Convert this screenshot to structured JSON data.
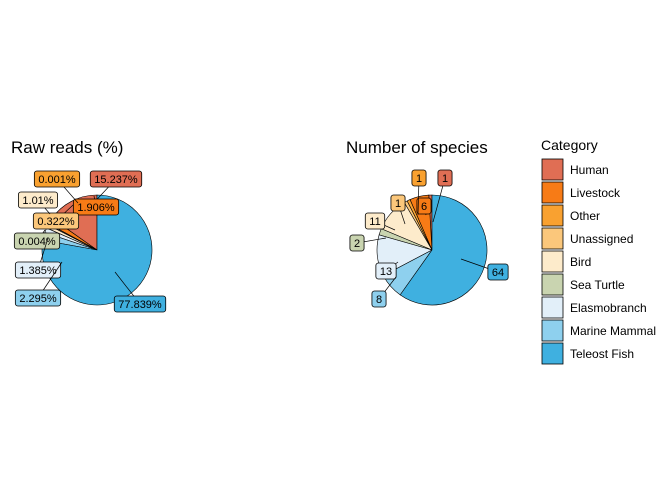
{
  "chart_data": [
    {
      "type": "pie",
      "title": "Raw reads (%)",
      "slices": [
        {
          "category": "Human",
          "value": 15.237,
          "label": "15.237%"
        },
        {
          "category": "Livestock",
          "value": 1.906,
          "label": "1.906%"
        },
        {
          "category": "Other",
          "value": 0.001,
          "label": "0.001%"
        },
        {
          "category": "Unassigned",
          "value": 0.322,
          "label": "0.322%"
        },
        {
          "category": "Bird",
          "value": 1.01,
          "label": "1.01%"
        },
        {
          "category": "Sea Turtle",
          "value": 0.004,
          "label": "0.004%"
        },
        {
          "category": "Elasmobranch",
          "value": 1.385,
          "label": "1.385%"
        },
        {
          "category": "Marine Mammal",
          "value": 2.295,
          "label": "2.295%"
        },
        {
          "category": "Teleost Fish",
          "value": 77.839,
          "label": "77.839%"
        }
      ]
    },
    {
      "type": "pie",
      "title": "Number of species",
      "slices": [
        {
          "category": "Human",
          "value": 1,
          "label": "1"
        },
        {
          "category": "Livestock",
          "value": 6,
          "label": "6"
        },
        {
          "category": "Other",
          "value": 1,
          "label": "1"
        },
        {
          "category": "Unassigned",
          "value": 1,
          "label": "1"
        },
        {
          "category": "Bird",
          "value": 11,
          "label": "11"
        },
        {
          "category": "Sea Turtle",
          "value": 2,
          "label": "2"
        },
        {
          "category": "Elasmobranch",
          "value": 13,
          "label": "13"
        },
        {
          "category": "Marine Mammal",
          "value": 8,
          "label": "8"
        },
        {
          "category": "Teleost Fish",
          "value": 64,
          "label": "64"
        }
      ]
    }
  ],
  "legend": {
    "title": "Category",
    "placement": "right",
    "items": [
      {
        "name": "Human",
        "color": "#E06E54"
      },
      {
        "name": "Livestock",
        "color": "#F77B16"
      },
      {
        "name": "Other",
        "color": "#F9A130"
      },
      {
        "name": "Unassigned",
        "color": "#FBC77B"
      },
      {
        "name": "Bird",
        "color": "#FDEBCB"
      },
      {
        "name": "Sea Turtle",
        "color": "#C9D4B0"
      },
      {
        "name": "Elasmobranch",
        "color": "#E2EFF9"
      },
      {
        "name": "Marine Mammal",
        "color": "#8ED0EE"
      },
      {
        "name": "Teleost Fish",
        "color": "#3FB0E0"
      }
    ]
  }
}
